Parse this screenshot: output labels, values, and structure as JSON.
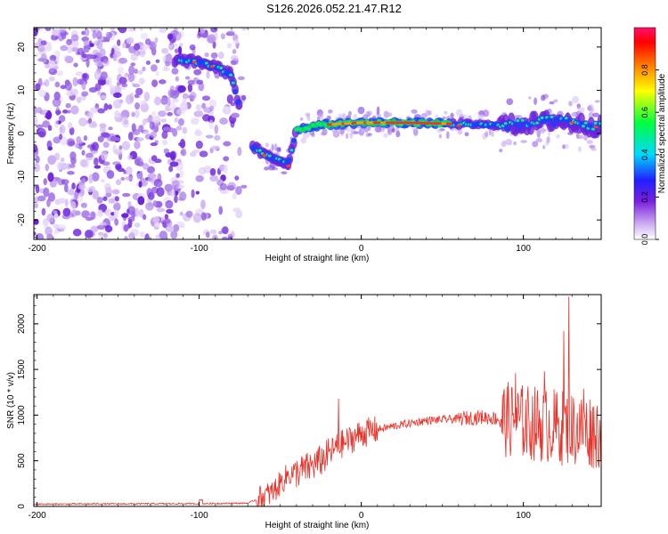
{
  "title": "S126.2026.052.21.47.R12",
  "chart_data": [
    {
      "type": "heatmap",
      "name": "spectrogram",
      "xlabel": "Height of straight line (km)",
      "ylabel": "Frequency (Hz)",
      "xlim": [
        -202,
        148
      ],
      "ylim": [
        -24.5,
        24.5
      ],
      "xticks": [
        -200,
        -100,
        0,
        100
      ],
      "yticks": [
        -20,
        -10,
        0,
        10,
        20
      ],
      "xtick_labels": [
        "-200",
        "-100",
        "0",
        "100"
      ],
      "ytick_labels": [
        "-20",
        "-10",
        "0",
        "10",
        "20"
      ],
      "colorbar": {
        "label": "Normalized spectral amplitude",
        "range": [
          0,
          1
        ],
        "ticks": [
          0.0,
          0.2,
          0.4,
          0.6,
          0.8
        ],
        "tick_labels": [
          "0.0",
          "0.2",
          "0.4",
          "0.6",
          "0.8"
        ]
      },
      "ridge": [
        {
          "x": -112,
          "f": 17
        },
        {
          "x": -100,
          "f": 16.5
        },
        {
          "x": -90,
          "f": 15.5
        },
        {
          "x": -80,
          "f": 13.5
        },
        {
          "x": -70,
          "f": -2
        },
        {
          "x": -60,
          "f": -5
        },
        {
          "x": -45,
          "f": -7
        },
        {
          "x": -40,
          "f": 1
        },
        {
          "x": -25,
          "f": 2
        },
        {
          "x": 0,
          "f": 2.5
        },
        {
          "x": 25,
          "f": 2.5
        },
        {
          "x": 50,
          "f": 2.3
        },
        {
          "x": 75,
          "f": 2
        },
        {
          "x": 95,
          "f": 2
        },
        {
          "x": 120,
          "f": 3
        },
        {
          "x": 148,
          "f": 1.5
        }
      ]
    },
    {
      "type": "line",
      "name": "snr",
      "xlabel": "Height of straight line (km)",
      "ylabel": "SNR (10 * v/v)",
      "xlim": [
        -202,
        148
      ],
      "ylim": [
        0,
        2320
      ],
      "xticks": [
        -200,
        -100,
        0,
        100
      ],
      "yticks": [
        0,
        500,
        1000,
        1500,
        2000
      ],
      "xtick_labels": [
        "-200",
        "-100",
        "0",
        "100"
      ],
      "ytick_labels": [
        "0",
        "500",
        "1000",
        "1500",
        "2000"
      ],
      "color": "#e8332a",
      "trend": [
        {
          "x": -202,
          "y": 25
        },
        {
          "x": -100,
          "y": 30
        },
        {
          "x": -70,
          "y": 35
        },
        {
          "x": -55,
          "y": 150
        },
        {
          "x": -45,
          "y": 350
        },
        {
          "x": -35,
          "y": 400
        },
        {
          "x": -25,
          "y": 500
        },
        {
          "x": -15,
          "y": 650
        },
        {
          "x": 0,
          "y": 800
        },
        {
          "x": 20,
          "y": 880
        },
        {
          "x": 40,
          "y": 940
        },
        {
          "x": 60,
          "y": 960
        },
        {
          "x": 75,
          "y": 980
        },
        {
          "x": 90,
          "y": 950
        },
        {
          "x": 110,
          "y": 900
        },
        {
          "x": 130,
          "y": 850
        },
        {
          "x": 148,
          "y": 820
        }
      ],
      "peaks": [
        {
          "x": -14,
          "y": 1180
        },
        {
          "x": 95,
          "y": 1460
        },
        {
          "x": 113,
          "y": 1480
        },
        {
          "x": 125,
          "y": 1920
        },
        {
          "x": 128,
          "y": 2300
        },
        {
          "x": 137,
          "y": 1290
        },
        {
          "x": 148,
          "y": 980
        }
      ]
    }
  ]
}
